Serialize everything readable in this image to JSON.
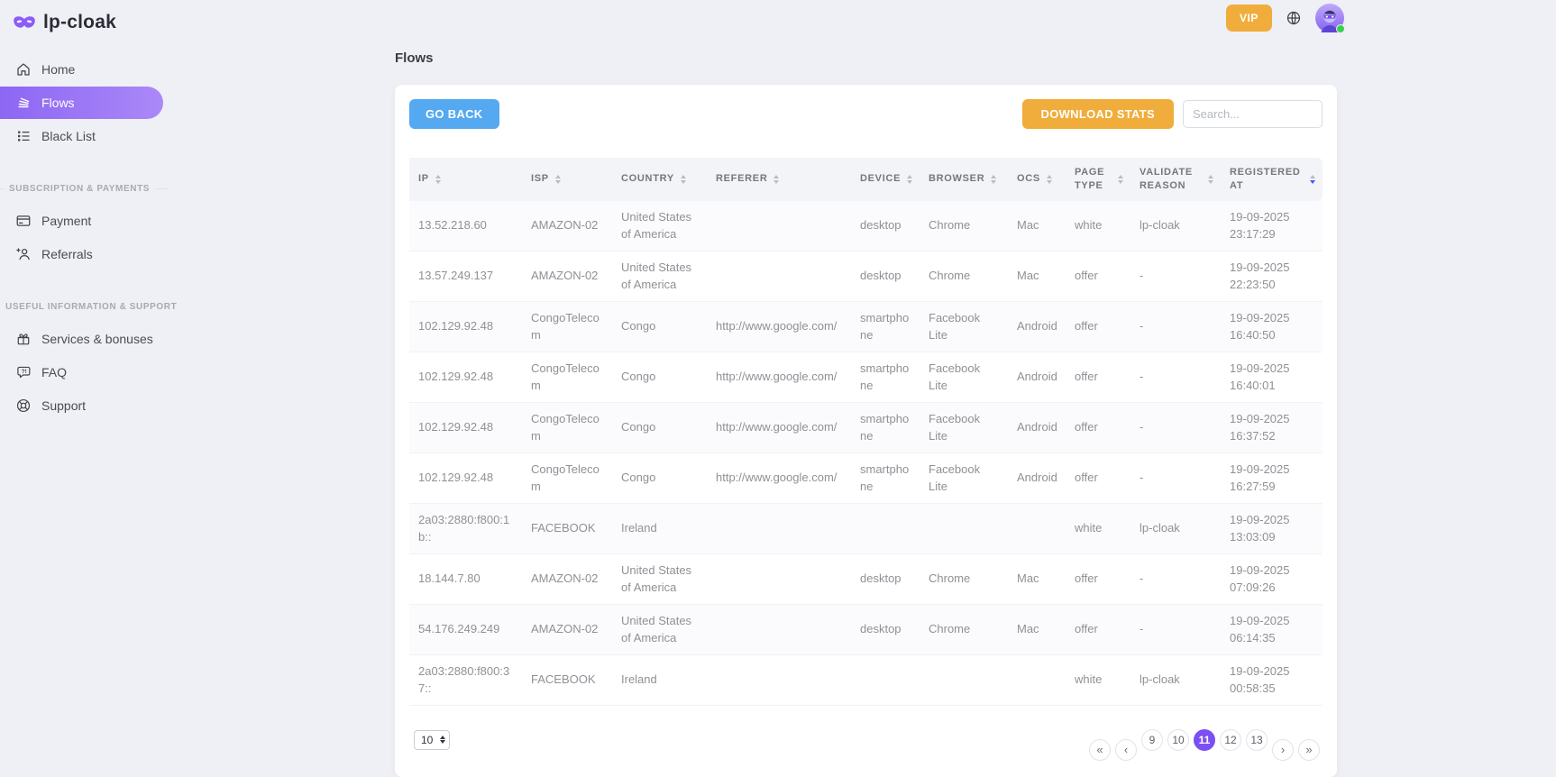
{
  "brand": {
    "name": "lp-cloak"
  },
  "header": {
    "vip_label": "VIP"
  },
  "sidebar": {
    "groups": [
      {
        "label": "",
        "items": [
          {
            "label": "Home",
            "icon": "home-icon"
          },
          {
            "label": "Flows",
            "icon": "flows-icon",
            "active": true
          },
          {
            "label": "Black List",
            "icon": "blacklist-icon"
          }
        ]
      },
      {
        "label": "Subscription & payments",
        "items": [
          {
            "label": "Payment",
            "icon": "payment-icon"
          },
          {
            "label": "Referrals",
            "icon": "referrals-icon"
          }
        ]
      },
      {
        "label": "Useful information & support",
        "items": [
          {
            "label": "Services & bonuses",
            "icon": "services-icon"
          },
          {
            "label": "FAQ",
            "icon": "faq-icon"
          },
          {
            "label": "Support",
            "icon": "support-icon"
          }
        ]
      }
    ]
  },
  "page": {
    "title": "Flows"
  },
  "toolbar": {
    "go_back_label": "GO BACK",
    "download_stats_label": "DOWNLOAD STATS",
    "search_placeholder": "Search..."
  },
  "table": {
    "columns": [
      {
        "label": "IP",
        "sort": "none"
      },
      {
        "label": "ISP",
        "sort": "none"
      },
      {
        "label": "Country",
        "sort": "none"
      },
      {
        "label": "Referer",
        "sort": "none"
      },
      {
        "label": "Device",
        "sort": "none"
      },
      {
        "label": "Browser",
        "sort": "none"
      },
      {
        "label": "OCS",
        "sort": "none"
      },
      {
        "label": "Page type",
        "sort": "none"
      },
      {
        "label": "Validate reason",
        "sort": "none"
      },
      {
        "label": "Registered at",
        "sort": "desc"
      }
    ],
    "rows": [
      {
        "ip": "13.52.218.60",
        "isp": "AMAZON-02",
        "country": "United States of America",
        "referer": "",
        "device": "desktop",
        "browser": "Chrome",
        "ocs": "Mac",
        "page_type": "white",
        "validate_reason": "lp-cloak",
        "registered_date": "19-09-2025",
        "registered_time": "23:17:29"
      },
      {
        "ip": "13.57.249.137",
        "isp": "AMAZON-02",
        "country": "United States of America",
        "referer": "",
        "device": "desktop",
        "browser": "Chrome",
        "ocs": "Mac",
        "page_type": "offer",
        "validate_reason": "-",
        "registered_date": "19-09-2025",
        "registered_time": "22:23:50"
      },
      {
        "ip": "102.129.92.48",
        "isp": "CongoTelecom",
        "country": "Congo",
        "referer": "http://www.google.com/",
        "device": "smartphone",
        "browser": "Facebook Lite",
        "ocs": "Android",
        "page_type": "offer",
        "validate_reason": "-",
        "registered_date": "19-09-2025",
        "registered_time": "16:40:50"
      },
      {
        "ip": "102.129.92.48",
        "isp": "CongoTelecom",
        "country": "Congo",
        "referer": "http://www.google.com/",
        "device": "smartphone",
        "browser": "Facebook Lite",
        "ocs": "Android",
        "page_type": "offer",
        "validate_reason": "-",
        "registered_date": "19-09-2025",
        "registered_time": "16:40:01"
      },
      {
        "ip": "102.129.92.48",
        "isp": "CongoTelecom",
        "country": "Congo",
        "referer": "http://www.google.com/",
        "device": "smartphone",
        "browser": "Facebook Lite",
        "ocs": "Android",
        "page_type": "offer",
        "validate_reason": "-",
        "registered_date": "19-09-2025",
        "registered_time": "16:37:52"
      },
      {
        "ip": "102.129.92.48",
        "isp": "CongoTelecom",
        "country": "Congo",
        "referer": "http://www.google.com/",
        "device": "smartphone",
        "browser": "Facebook Lite",
        "ocs": "Android",
        "page_type": "offer",
        "validate_reason": "-",
        "registered_date": "19-09-2025",
        "registered_time": "16:27:59"
      },
      {
        "ip": "2a03:2880:f800:1b::",
        "isp": "FACEBOOK",
        "country": "Ireland",
        "referer": "",
        "device": "",
        "browser": "",
        "ocs": "",
        "page_type": "white",
        "validate_reason": "lp-cloak",
        "registered_date": "19-09-2025",
        "registered_time": "13:03:09"
      },
      {
        "ip": "18.144.7.80",
        "isp": "AMAZON-02",
        "country": "United States of America",
        "referer": "",
        "device": "desktop",
        "browser": "Chrome",
        "ocs": "Mac",
        "page_type": "offer",
        "validate_reason": "-",
        "registered_date": "19-09-2025",
        "registered_time": "07:09:26"
      },
      {
        "ip": "54.176.249.249",
        "isp": "AMAZON-02",
        "country": "United States of America",
        "referer": "",
        "device": "desktop",
        "browser": "Chrome",
        "ocs": "Mac",
        "page_type": "offer",
        "validate_reason": "-",
        "registered_date": "19-09-2025",
        "registered_time": "06:14:35"
      },
      {
        "ip": "2a03:2880:f800:37::",
        "isp": "FACEBOOK",
        "country": "Ireland",
        "referer": "",
        "device": "",
        "browser": "",
        "ocs": "",
        "page_type": "white",
        "validate_reason": "lp-cloak",
        "registered_date": "19-09-2025",
        "registered_time": "00:58:35"
      }
    ]
  },
  "pagination": {
    "page_size": "10",
    "items": [
      {
        "label": "«",
        "kind": "nav"
      },
      {
        "label": "‹",
        "kind": "nav"
      },
      {
        "label": "9"
      },
      {
        "label": "10"
      },
      {
        "label": "11",
        "active": true
      },
      {
        "label": "12"
      },
      {
        "label": "13"
      },
      {
        "label": "›",
        "kind": "nav"
      },
      {
        "label": "»",
        "kind": "nav"
      }
    ]
  },
  "colors": {
    "accent_purple": "#7b4ff2",
    "sidebar_active_gradient_start": "#8d66f3",
    "sidebar_active_gradient_end": "#ab88f8",
    "blue_button": "#55a9f1",
    "amber_button": "#f0ad3b",
    "status_green": "#3ccf4e",
    "sort_active_blue": "#3b5bfd",
    "background": "#eff0f5"
  }
}
